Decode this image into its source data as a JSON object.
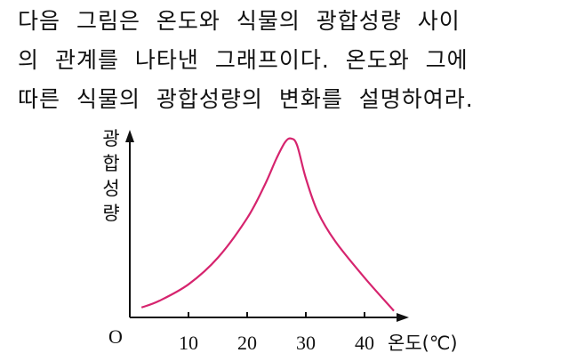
{
  "question": {
    "lines": [
      "다음 그림은 온도와 식물의 광합성량 사이",
      "의 관계를 나타낸 그래프이다. 온도와 그에",
      "따른 식물의 광합성량의 변화를 설명하여라."
    ]
  },
  "chart_data": {
    "type": "line",
    "ylabel": "광합성량",
    "xlabel": "온도(℃)",
    "origin_label": "O",
    "x_ticks": [
      10,
      20,
      30,
      40
    ],
    "xlim": [
      0,
      45
    ],
    "y_ticks_shown": false,
    "line_color": "#d6246e",
    "series": [
      {
        "x": [
          2,
          5,
          10,
          15,
          20,
          23,
          25,
          26.5,
          27.5,
          28.5,
          30,
          32,
          35,
          40,
          45
        ],
        "y": [
          1.5,
          2.5,
          5,
          9,
          15,
          20,
          24,
          26.5,
          27,
          26,
          21,
          16,
          11.5,
          6,
          1
        ]
      }
    ]
  }
}
